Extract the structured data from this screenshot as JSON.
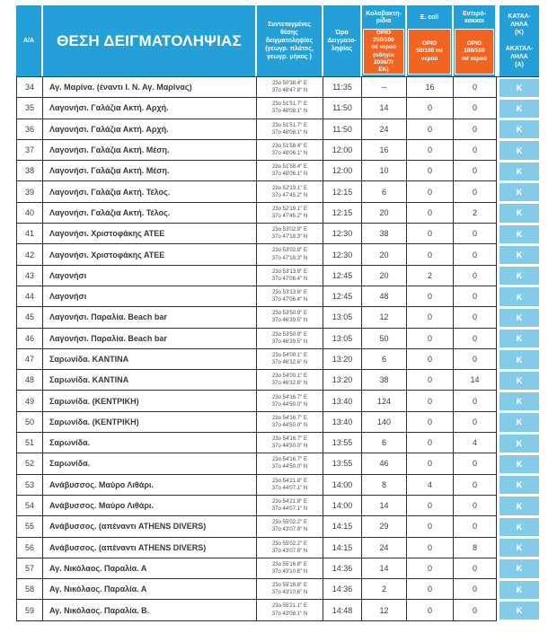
{
  "colors": {
    "header_blue": "#259FD7",
    "limit_orange": "#F26422",
    "status_light_blue": "#84CBE8",
    "grid_border": "#2f2f2f"
  },
  "table": {
    "header": {
      "col_index_label": "Α/Α",
      "col_location_label": "ΘΕΣΗ ΔΕΙΓΜΑΤΟΛΗΨΙΑΣ",
      "col_coordinates_label": "Συντεταγμένες\nθέσης\nδειγματοληψίας\n(γεωγρ. πλάτος,\nγεωγρ. μήκος )",
      "col_time_label": "Ώρα\nΔειγματο-\nληψίας",
      "col_coliform_label": "Κολοβακτη-\nρίδια",
      "col_coliform_limit": "ΟΡΙΟ\n250/100\nml νερού\n(οδηγία\n2006/7/\nΕΚ)",
      "col_ecoli_label": "E. coli",
      "col_ecoli_limit": "ΟΡΙΟ\n50/100 ml\nνερού",
      "col_entero_label": "Εντερό-\nκοκκοι",
      "col_entero_limit": "ΟΡΙΟ\n100/100\nml νερού",
      "col_status_label": "ΚΑΤΑΛ-\nΛΗΛΑ\n(Κ)\n\nΑΚΑΤΑΛ-\nΛΗΛΑ\n(Α)"
    },
    "rows": [
      {
        "num": "34",
        "location": "Αγ. Μαρίνα. (έναντι Ι. Ν. Αγ. Μαρίνας)",
        "coord_e": "23o 50′38.4′′  E",
        "coord_n": "37o 48′47.8′′  N",
        "time": "11:35",
        "coliform": "--",
        "ecoli": "16",
        "entero": "0",
        "status": "Κ"
      },
      {
        "num": "35",
        "location": "Λαγονήσι. Γαλάζια Ακτή. Αρχή.",
        "coord_e": "23o 51′51.7′′  E",
        "coord_n": "37o 48′08.1′′  N",
        "time": "11:50",
        "coliform": "14",
        "ecoli": "0",
        "entero": "0",
        "status": "Κ"
      },
      {
        "num": "36",
        "location": "Λαγονήσι. Γαλάζια Ακτή. Αρχή.",
        "coord_e": "23o 51′51.7′′  E",
        "coord_n": "37o 48′08.1′′  N",
        "time": "11:50",
        "coliform": "24",
        "ecoli": "0",
        "entero": "0",
        "status": "Κ"
      },
      {
        "num": "37",
        "location": "Λαγονήσι. Γαλάζια Ακτή. Μέση.",
        "coord_e": "23o 51′58.4′′  E",
        "coord_n": "37o 48′06.1′′  N",
        "time": "12:00",
        "coliform": "16",
        "ecoli": "0",
        "entero": "0",
        "status": "Κ"
      },
      {
        "num": "38",
        "location": "Λαγονήσι. Γαλάζια Ακτή. Μέση.",
        "coord_e": "23o 51′58.4′′  E",
        "coord_n": "37o 48′06.1′′  N",
        "time": "12:00",
        "coliform": "10",
        "ecoli": "0",
        "entero": "0",
        "status": "Κ"
      },
      {
        "num": "39",
        "location": "Λαγονήσι. Γαλάζια Ακτή. Τέλος.",
        "coord_e": "23o 52′19.1′′  E",
        "coord_n": "37o 47′45.2′′  N",
        "time": "12:15",
        "coliform": "6",
        "ecoli": "0",
        "entero": "0",
        "status": "Κ"
      },
      {
        "num": "40",
        "location": "Λαγονήσι. Γαλάζια Ακτή. Τέλος.",
        "coord_e": "23o 52′19.1′′  E",
        "coord_n": "37o 47′45.2′′  N",
        "time": "12:15",
        "coliform": "20",
        "ecoli": "0",
        "entero": "2",
        "status": "Κ"
      },
      {
        "num": "41",
        "location": "Λαγονήσι. Χριστοφάκης ΑΤΕΕ",
        "coord_e": "23o 53′02.9′′  E",
        "coord_n": "37o 47′18.3′′  N",
        "time": "12:30",
        "coliform": "38",
        "ecoli": "0",
        "entero": "0",
        "status": "Κ"
      },
      {
        "num": "42",
        "location": "Λαγονήσι. Χριστοφάκης ΑΤΕΕ",
        "coord_e": "23o 53′02.9′′  E",
        "coord_n": "37o 47′18.3′′  N",
        "time": "12:30",
        "coliform": "20",
        "ecoli": "0",
        "entero": "0",
        "status": "Κ"
      },
      {
        "num": "43",
        "location": "Λαγονήσι",
        "coord_e": "23o 53′13.9′′  E",
        "coord_n": "37o 47′06.4′′  N",
        "time": "12:45",
        "coliform": "20",
        "ecoli": "2",
        "entero": "0",
        "status": "Κ"
      },
      {
        "num": "44",
        "location": "Λαγονήσι",
        "coord_e": "23o 53′13.9′′  E",
        "coord_n": "37o 47′06.4′′  N",
        "time": "12:45",
        "coliform": "48",
        "ecoli": "0",
        "entero": "0",
        "status": "Κ"
      },
      {
        "num": "45",
        "location": "Λαγονήσι. Παραλία. Beach bar",
        "coord_e": "23o 53′50.9′′  E",
        "coord_n": "37o 46′39.5′′  N",
        "time": "13:05",
        "coliform": "12",
        "ecoli": "0",
        "entero": "0",
        "status": "Κ"
      },
      {
        "num": "46",
        "location": "Λαγονήσι. Παραλία. Beach bar",
        "coord_e": "23o 53′50.9′′  E",
        "coord_n": "37o 46′39.5′′  N",
        "time": "13:05",
        "coliform": "50",
        "ecoli": "0",
        "entero": "0",
        "status": "Κ"
      },
      {
        "num": "47",
        "location": "Σαρωνίδα. ΚΑΝΤΙΝΑ",
        "coord_e": "23o 54′00.1′′  E",
        "coord_n": "37o 46′32.6′′  N",
        "time": "13:20",
        "coliform": "6",
        "ecoli": "0",
        "entero": "0",
        "status": "Κ"
      },
      {
        "num": "48",
        "location": "Σαρωνίδα. ΚΑΝΤΙΝΑ",
        "coord_e": "23o 54′00.1′′  E",
        "coord_n": "37o 46′32.6′′  N",
        "time": "13:20",
        "coliform": "38",
        "ecoli": "0",
        "entero": "14",
        "status": "Κ"
      },
      {
        "num": "49",
        "location": "Σαρωνίδα. (ΚΕΝΤΡΙΚΗ)",
        "coord_e": "23o 54′16.7′′  E",
        "coord_n": "37o 44′50.0′′  N",
        "time": "13:40",
        "coliform": "124",
        "ecoli": "0",
        "entero": "0",
        "status": "Κ"
      },
      {
        "num": "50",
        "location": "Σαρωνίδα. (ΚΕΝΤΡΙΚΗ)",
        "coord_e": "23o 54′16.7′′  E",
        "coord_n": "37o 44′50.0′′  N",
        "time": "13:40",
        "coliform": "140",
        "ecoli": "0",
        "entero": "0",
        "status": "Κ"
      },
      {
        "num": "51",
        "location": "Σαρωνίδα.",
        "coord_e": "23o 54′16.7′′  E",
        "coord_n": "37o 44′50.0′′  N",
        "time": "13:55",
        "coliform": "6",
        "ecoli": "0",
        "entero": "4",
        "status": "Κ"
      },
      {
        "num": "52",
        "location": "Σαρωνίδα.",
        "coord_e": "23o 54′16.7′′  E",
        "coord_n": "37o 44′50.0′′  N",
        "time": "13:55",
        "coliform": "46",
        "ecoli": "0",
        "entero": "0",
        "status": "Κ"
      },
      {
        "num": "53",
        "location": "Ανάβυσσος. Μαύρο Λιθάρι.",
        "coord_e": "23o 54′21.8′′  E",
        "coord_n": "37o 44′07.1′′  N",
        "time": "14:00",
        "coliform": "8",
        "ecoli": "4",
        "entero": "0",
        "status": "Κ"
      },
      {
        "num": "54",
        "location": "Ανάβυσσος. Μαύρο Λιθάρι.",
        "coord_e": "23o 54′21.8′′  E",
        "coord_n": "37o 44′07.1′′  N",
        "time": "14:00",
        "coliform": "14",
        "ecoli": "0",
        "entero": "0",
        "status": "Κ"
      },
      {
        "num": "55",
        "location": "Ανάβυσσος. (απέναντι ATHENS DIVERS)",
        "coord_e": "23o 55′02.2′′  E",
        "coord_n": "37o 43′07.9′′  N",
        "time": "14:15",
        "coliform": "29",
        "ecoli": "0",
        "entero": "0",
        "status": "Κ"
      },
      {
        "num": "56",
        "location": "Ανάβυσσος. (απέναντι ATHENS DIVERS)",
        "coord_e": "23o 55′02.2′′  E",
        "coord_n": "37o 43′07.9′′  N",
        "time": "14:15",
        "coliform": "24",
        "ecoli": "0",
        "entero": "8",
        "status": "Κ"
      },
      {
        "num": "57",
        "location": "Αγ. Νικόλαος. Παραλία. Α",
        "coord_e": "23o 55′16.8′′  E",
        "coord_n": "37o 43′10.6′′  N",
        "time": "14:36",
        "coliform": "14",
        "ecoli": "0",
        "entero": "0",
        "status": "Κ"
      },
      {
        "num": "58",
        "location": "Αγ. Νικόλαος. Παραλία. Α",
        "coord_e": "23o 55′16.8′′  E",
        "coord_n": "37o 43′10.6′′  N",
        "time": "14:36",
        "coliform": "2",
        "ecoli": "0",
        "entero": "0",
        "status": "Κ"
      },
      {
        "num": "59",
        "location": "Αγ. Νικόλαος. Παραλία. Β.",
        "coord_e": "23o 55′21.1′′  E",
        "coord_n": "37o 43′08.1′′  N",
        "time": "14:48",
        "coliform": "12",
        "ecoli": "0",
        "entero": "0",
        "status": "Κ"
      }
    ]
  }
}
